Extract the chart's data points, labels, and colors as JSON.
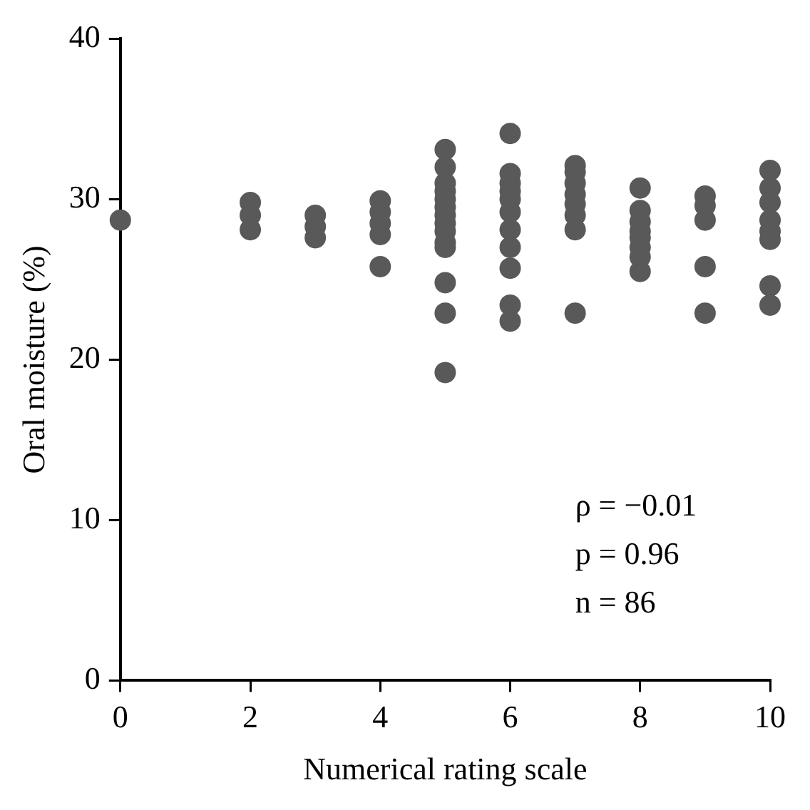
{
  "chart_data": {
    "type": "scatter",
    "xlabel": "Numerical rating scale",
    "ylabel": "Oral moisture (%)",
    "xlim": [
      0,
      10
    ],
    "xticks": [
      0,
      2,
      4,
      6,
      8,
      10
    ],
    "ylim": [
      0,
      40
    ],
    "yticks": [
      0,
      10,
      20,
      30,
      40
    ],
    "grid": false,
    "legend": false,
    "marker": "circle",
    "annotations": [
      "ρ = −0.01",
      "p = 0.96",
      "n = 86"
    ],
    "series": [
      {
        "color": "#595959",
        "x": [
          0,
          2,
          2,
          2,
          3,
          3,
          3,
          4,
          4,
          4,
          4,
          4,
          5,
          5,
          5,
          5,
          5,
          5,
          5,
          5,
          5,
          5,
          5,
          5,
          5,
          5,
          6,
          6,
          6,
          6,
          6,
          6,
          6,
          6,
          6,
          6,
          6,
          7,
          7,
          7,
          7,
          7,
          7,
          7,
          7,
          8,
          8,
          8,
          8,
          8,
          8,
          8,
          8,
          9,
          9,
          9,
          9,
          9,
          10,
          10,
          10,
          10,
          10,
          10,
          10,
          10
        ],
        "values": [
          28.7,
          29.8,
          29.0,
          28.1,
          29.0,
          28.3,
          27.6,
          29.9,
          29.2,
          28.5,
          27.8,
          25.8,
          33.1,
          32.0,
          31.0,
          30.5,
          30.0,
          29.5,
          29.0,
          28.5,
          28.0,
          27.3,
          27.0,
          24.8,
          22.9,
          19.2,
          34.1,
          31.6,
          31.0,
          30.5,
          30.0,
          29.2,
          28.1,
          27.0,
          25.7,
          23.4,
          22.4,
          32.1,
          31.7,
          31.0,
          30.3,
          29.7,
          29.0,
          28.1,
          22.9,
          30.7,
          29.3,
          28.6,
          28.0,
          27.6,
          27.0,
          26.4,
          25.5,
          30.2,
          29.6,
          28.7,
          25.8,
          22.9,
          31.8,
          30.7,
          29.8,
          28.7,
          28.0,
          27.5,
          24.6,
          23.4
        ]
      }
    ]
  }
}
